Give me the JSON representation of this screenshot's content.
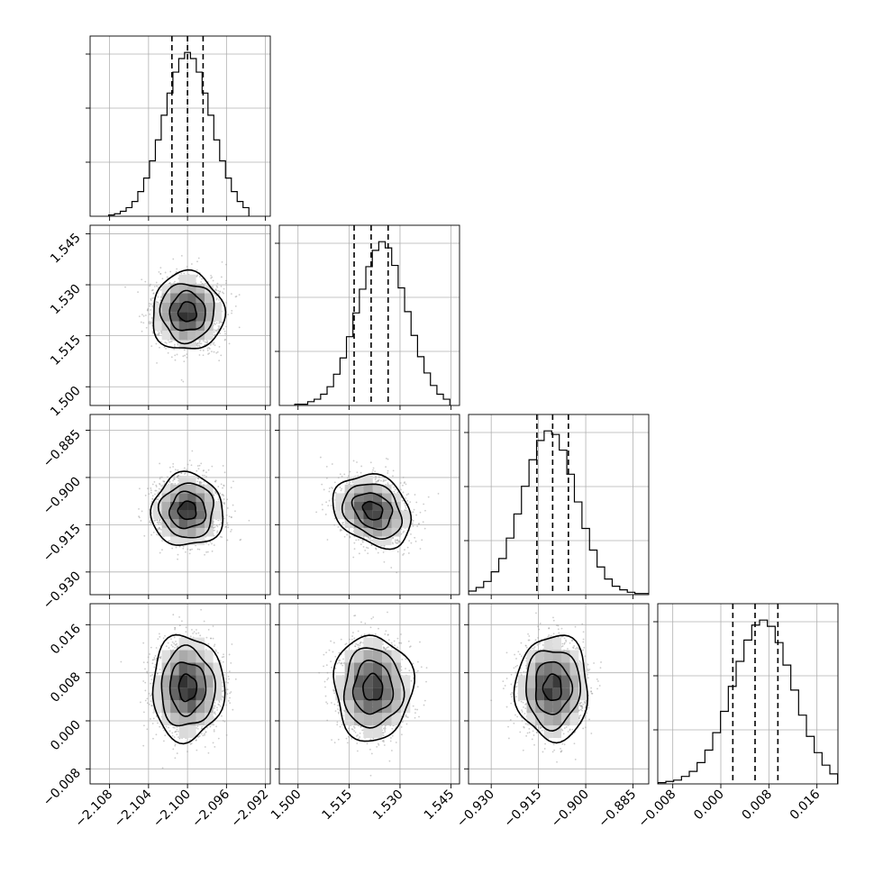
{
  "chart_data": {
    "type": "corner",
    "parameters": [
      {
        "mean": -2.1,
        "sd": 0.0016,
        "quantiles": [
          -2.1016,
          -2.1,
          -2.0984
        ],
        "lim": [
          -2.11,
          -2.0915
        ],
        "ticks": [
          -2.108,
          -2.104,
          -2.1,
          -2.096,
          -2.092
        ],
        "tick_labels": [
          "−2.108",
          "−2.104",
          "−2.100",
          "−2.096",
          "−2.092"
        ]
      },
      {
        "mean": 1.522,
        "sd": 0.005,
        "quantiles": [
          1.5165,
          1.5215,
          1.5265
        ],
        "lim": [
          1.4945,
          1.5475
        ],
        "ticks": [
          1.5,
          1.515,
          1.53,
          1.545
        ],
        "tick_labels": [
          "1.500",
          "1.515",
          "1.530",
          "1.545"
        ]
      },
      {
        "mean": -0.9105,
        "sd": 0.005,
        "quantiles": [
          -0.9155,
          -0.9105,
          -0.9055
        ],
        "lim": [
          -0.9372,
          -0.88
        ],
        "ticks": [
          -0.93,
          -0.915,
          -0.9,
          -0.885
        ],
        "tick_labels": [
          "−0.930",
          "−0.915",
          "−0.900",
          "−0.885"
        ]
      },
      {
        "mean": 0.0055,
        "sd": 0.0038,
        "quantiles": [
          0.002,
          0.0057,
          0.0095
        ],
        "lim": [
          -0.0105,
          0.0195
        ],
        "ticks": [
          -0.008,
          0.0,
          0.008,
          0.016
        ],
        "tick_labels": [
          "−0.008",
          "0.000",
          "0.008",
          "0.016"
        ]
      }
    ],
    "histograms": [
      {
        "bin_centers": [
          -2.1078,
          -2.1072,
          -2.1066,
          -2.106,
          -2.1054,
          -2.1048,
          -2.1042,
          -2.1036,
          -2.103,
          -2.1024,
          -2.1018,
          -2.1012,
          -2.1006,
          -2.1,
          -2.0994,
          -2.0988,
          -2.0982,
          -2.0976,
          -2.097,
          -2.0964,
          -2.0958,
          -2.0952,
          -2.0946,
          -2.094
        ],
        "counts": [
          1,
          2,
          4,
          7,
          12,
          20,
          31,
          45,
          62,
          82,
          100,
          117,
          128,
          133,
          128,
          117,
          100,
          82,
          62,
          45,
          31,
          20,
          12,
          7
        ]
      },
      {
        "bin_centers": [
          1.5,
          1.5019,
          1.5038,
          1.5057,
          1.5076,
          1.5095,
          1.5114,
          1.5133,
          1.5152,
          1.5171,
          1.519,
          1.5209,
          1.5228,
          1.5247,
          1.5266,
          1.5285,
          1.5304,
          1.5323,
          1.5342,
          1.5361,
          1.538,
          1.5399,
          1.5418,
          1.5437
        ],
        "counts": [
          1,
          1,
          3,
          5,
          9,
          15,
          25,
          38,
          55,
          74,
          93,
          111,
          124,
          131,
          126,
          112,
          94,
          75,
          56,
          39,
          26,
          16,
          9,
          5
        ]
      },
      {
        "bin_centers": [
          -0.936,
          -0.9336,
          -0.9312,
          -0.9288,
          -0.9264,
          -0.924,
          -0.9216,
          -0.9192,
          -0.9168,
          -0.9144,
          -0.912,
          -0.9096,
          -0.9072,
          -0.9048,
          -0.9024,
          -0.9,
          -0.8976,
          -0.8952,
          -0.8928,
          -0.8904,
          -0.888,
          -0.8856,
          -0.8832,
          -0.8808
        ],
        "counts": [
          3,
          6,
          11,
          19,
          30,
          47,
          67,
          90,
          112,
          128,
          136,
          133,
          120,
          100,
          77,
          55,
          37,
          23,
          13,
          7,
          4,
          2,
          1,
          1
        ]
      },
      {
        "bin_centers": [
          -0.0098,
          -0.0085,
          -0.0072,
          -0.0059,
          -0.0046,
          -0.0033,
          -0.002,
          -0.0007,
          0.0006,
          0.0019,
          0.0032,
          0.0045,
          0.0058,
          0.0071,
          0.0084,
          0.0097,
          0.011,
          0.0123,
          0.0136,
          0.0149,
          0.0162,
          0.0175,
          0.0188
        ],
        "counts": [
          1,
          2,
          3,
          6,
          10,
          17,
          27,
          41,
          58,
          78,
          98,
          115,
          127,
          131,
          126,
          113,
          95,
          75,
          55,
          38,
          25,
          15,
          8
        ]
      }
    ],
    "correlations": [
      {
        "row": 1,
        "col": 0,
        "rho": 0.0
      },
      {
        "row": 2,
        "col": 0,
        "rho": 0.0
      },
      {
        "row": 2,
        "col": 1,
        "rho": -0.25
      },
      {
        "row": 3,
        "col": 0,
        "rho": 0.0
      },
      {
        "row": 3,
        "col": 1,
        "rho": 0.0
      },
      {
        "row": 3,
        "col": 2,
        "rho": 0.0
      }
    ],
    "contour_levels_sigma": [
      0.5,
      1.0,
      1.5,
      2.0
    ],
    "grid": true,
    "legend": "none",
    "title": "",
    "axis_labels": [
      "",
      "",
      "",
      ""
    ]
  }
}
